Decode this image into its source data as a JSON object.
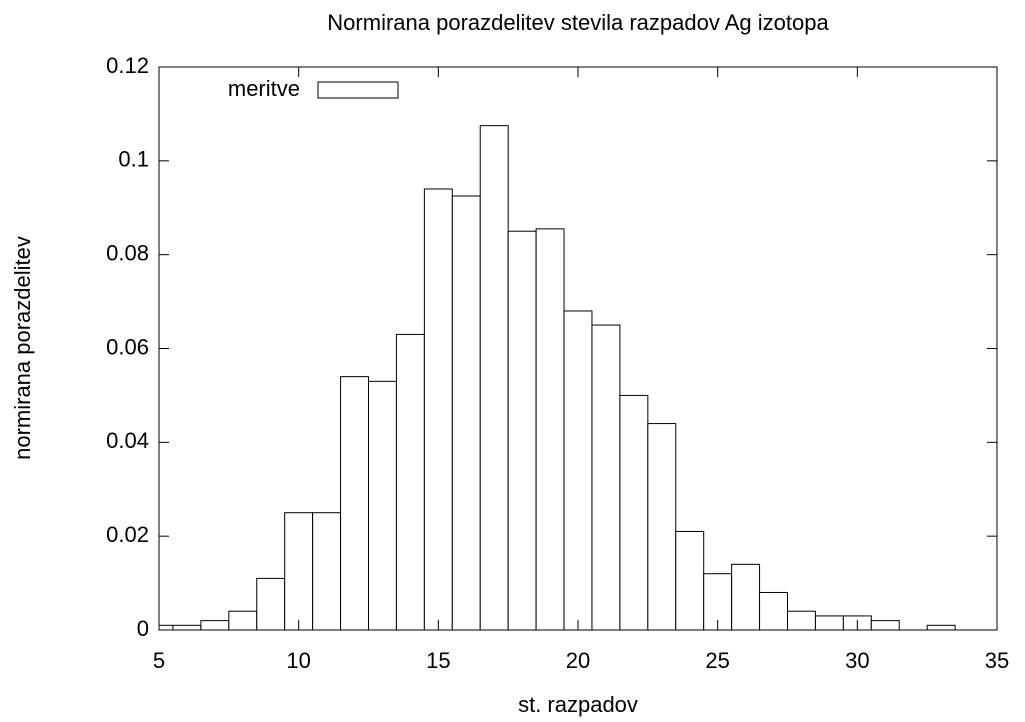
{
  "chart_data": {
    "type": "histogram",
    "title": "Normirana porazdelitev stevila razpadov Ag izotopa",
    "x_label": "st. razpadov",
    "y_label": "normirana porazdelitev",
    "bins": [
      4.5,
      5.5,
      6.5,
      7.5,
      8.5,
      9.5,
      10.5,
      11.5,
      12.5,
      13.5,
      14.5,
      15.5,
      16.5,
      17.5,
      18.5,
      19.5,
      20.5,
      21.5,
      22.5,
      23.5,
      24.5,
      25.5,
      26.5,
      27.5,
      28.5,
      29.5,
      30.5,
      31.5,
      32.5,
      33.5
    ],
    "series": [
      {
        "name": "meritve",
        "color": "#ffffff",
        "values": [
          0.001,
          0.001,
          0.002,
          0.004,
          0.011,
          0.025,
          0.025,
          0.054,
          0.053,
          0.063,
          0.094,
          0.0925,
          0.1075,
          0.085,
          0.0855,
          0.068,
          0.065,
          0.05,
          0.044,
          0.021,
          0.012,
          0.014,
          0.008,
          0.004,
          0.003,
          0.003,
          0.002,
          0,
          0.001
        ]
      }
    ],
    "xlim": [
      5,
      35
    ],
    "ylim": [
      0,
      0.12
    ],
    "xticks": [
      5,
      10,
      15,
      20,
      25,
      30,
      35
    ],
    "yticks": [
      0,
      0.02,
      0.04,
      0.06,
      0.08,
      0.1,
      0.12
    ],
    "legend": "upper left"
  }
}
